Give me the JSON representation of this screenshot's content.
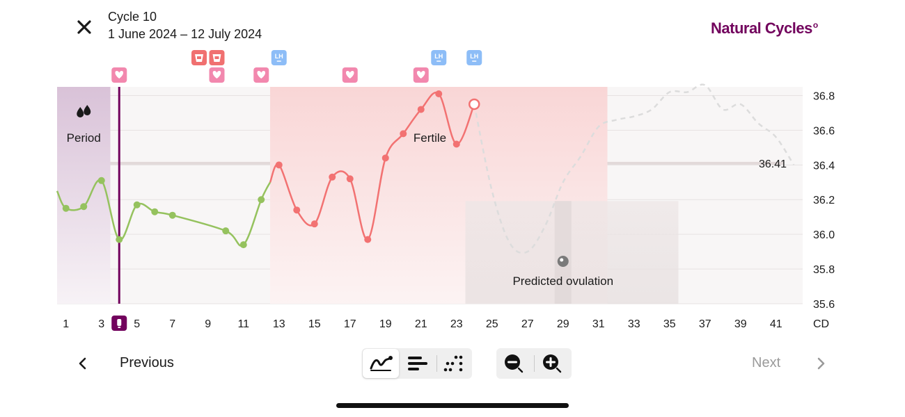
{
  "header": {
    "title": "Cycle 10",
    "date_range": "1 June 2024 – 12 July 2024",
    "brand": "Natural Cycles",
    "brand_mark": "o"
  },
  "chart_data": {
    "type": "line",
    "x_unit_label": "CD",
    "x_ticks": [
      "1",
      "3",
      "5",
      "7",
      "9",
      "11",
      "13",
      "15",
      "17",
      "19",
      "21",
      "23",
      "25",
      "27",
      "29",
      "31",
      "33",
      "35",
      "37",
      "39",
      "41"
    ],
    "xlim": [
      0.5,
      42.5
    ],
    "y_ticks": [
      "36.8",
      "36.6",
      "36.4",
      "36.2",
      "36.0",
      "35.8",
      "35.6"
    ],
    "ylim": [
      35.6,
      36.85
    ],
    "cover_line": {
      "value": 36.41,
      "label": "36.41"
    },
    "current_day_marker": 4,
    "phases": [
      {
        "name": "period",
        "label": "Period",
        "start": 0.5,
        "end": 3.5,
        "color": "#d9c2d8"
      },
      {
        "name": "fertile",
        "label": "Fertile",
        "start": 12.5,
        "end": 31.5,
        "color": "#f9d6d6"
      },
      {
        "name": "predicted-ovulation",
        "label": "Predicted ovulation",
        "start": 23.5,
        "end": 35.5,
        "color": "#e8e1e1"
      }
    ],
    "series": [
      {
        "status": "infertile",
        "color": "#95c25e",
        "points": [
          [
            0.5,
            36.25
          ],
          [
            1,
            36.15
          ],
          [
            2,
            36.16
          ],
          [
            3,
            36.31
          ],
          [
            4,
            35.97
          ],
          [
            5,
            36.17
          ],
          [
            6,
            36.13
          ],
          [
            7,
            36.11
          ],
          [
            10,
            36.02
          ],
          [
            11,
            35.94
          ],
          [
            12,
            36.2
          ],
          [
            12.5,
            36.3
          ]
        ]
      },
      {
        "status": "fertile",
        "color": "#f27272",
        "points": [
          [
            12.5,
            36.3
          ],
          [
            13,
            36.4
          ],
          [
            14,
            36.14
          ],
          [
            15,
            36.06
          ],
          [
            16,
            36.33
          ],
          [
            17,
            36.32
          ],
          [
            18,
            35.97
          ],
          [
            19,
            36.44
          ],
          [
            20,
            36.58
          ],
          [
            21,
            36.72
          ],
          [
            22,
            36.81
          ],
          [
            23,
            36.52
          ],
          [
            24,
            36.75
          ]
        ]
      }
    ],
    "hollow_point": [
      24,
      36.75
    ],
    "predicted_series": {
      "color": "#dcdcdc",
      "points": [
        [
          24,
          36.75
        ],
        [
          25,
          36.25
        ],
        [
          26,
          35.95
        ],
        [
          27,
          35.9
        ],
        [
          28,
          36.05
        ],
        [
          29,
          36.3
        ],
        [
          30,
          36.45
        ],
        [
          31,
          36.62
        ],
        [
          32,
          36.66
        ],
        [
          33,
          36.68
        ],
        [
          34,
          36.72
        ],
        [
          35,
          36.82
        ],
        [
          36,
          36.82
        ],
        [
          37,
          36.86
        ],
        [
          38,
          36.72
        ],
        [
          39,
          36.75
        ],
        [
          40,
          36.64
        ],
        [
          41,
          36.56
        ],
        [
          42,
          36.4
        ]
      ]
    },
    "ovulation_marker_day": 29,
    "event_icons": [
      {
        "type": "heart",
        "day": 4,
        "row": 1
      },
      {
        "type": "bleed",
        "day": 8.5,
        "row": 0
      },
      {
        "type": "bleed",
        "day": 9.5,
        "row": 0
      },
      {
        "type": "heart",
        "day": 9.5,
        "row": 1
      },
      {
        "type": "heart",
        "day": 12,
        "row": 1
      },
      {
        "type": "lh",
        "day": 13,
        "row": 0
      },
      {
        "type": "heart",
        "day": 17,
        "row": 1
      },
      {
        "type": "heart",
        "day": 21,
        "row": 1
      },
      {
        "type": "lh",
        "day": 22,
        "row": 0
      },
      {
        "type": "lh",
        "day": 24,
        "row": 0
      }
    ],
    "lh_label": "LH",
    "colors": {
      "heart": "#f288ae",
      "bleed": "#f07070",
      "lh": "#8dbdf7",
      "current_day": "#72035d",
      "grid": "#e6e2e2"
    }
  },
  "nav": {
    "previous_label": "Previous",
    "next_label": "Next",
    "view_buttons": [
      {
        "name": "graph",
        "icon": "line-graph-icon",
        "active": true
      },
      {
        "name": "bars",
        "icon": "bars-icon",
        "active": false
      },
      {
        "name": "dots",
        "icon": "dots-icon",
        "active": false
      }
    ],
    "zoom_buttons": [
      {
        "name": "zoom-out",
        "icon": "zoom-out-icon"
      },
      {
        "name": "zoom-in",
        "icon": "zoom-in-icon"
      }
    ]
  }
}
